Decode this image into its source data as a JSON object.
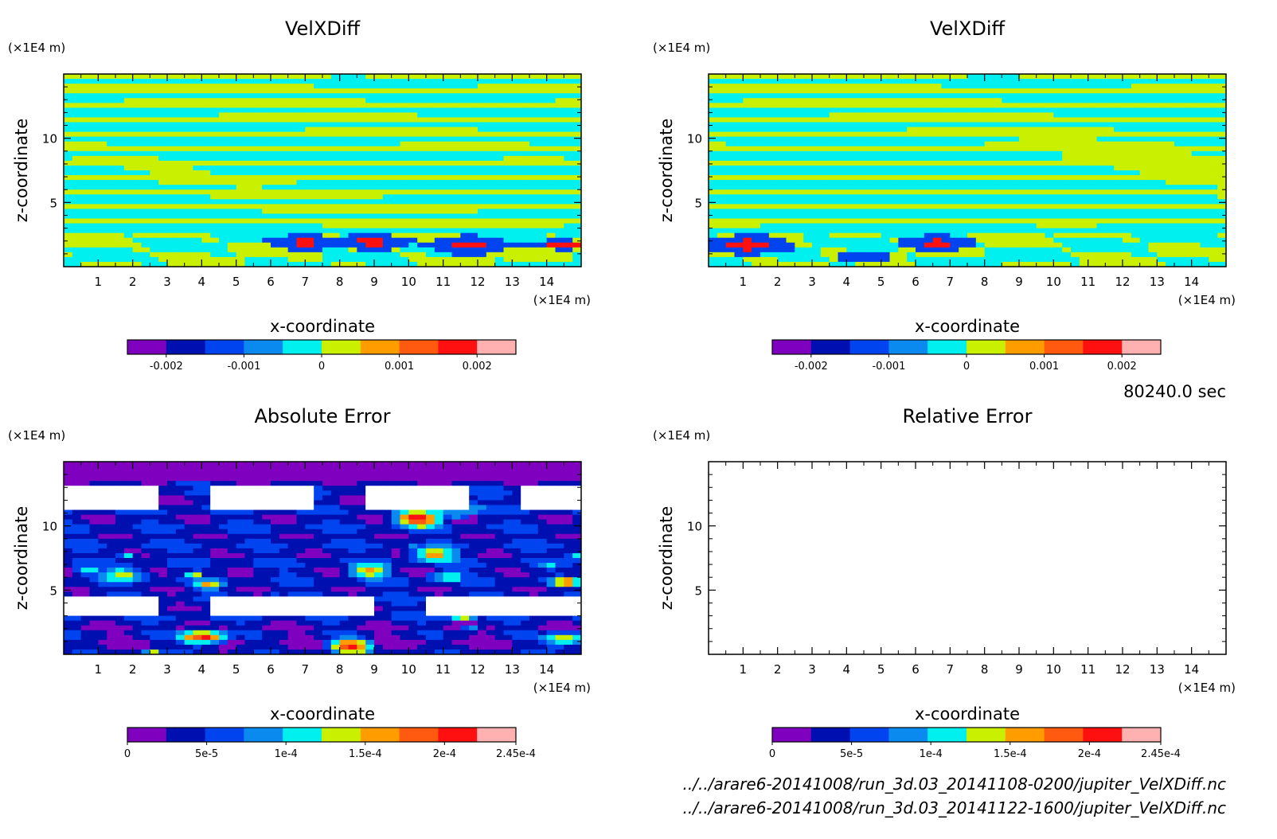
{
  "time_label": "80240.0 sec",
  "file_paths": [
    "../../arare6-20141008/run_3d.03_20141108-0200/jupiter_VelXDiff.nc",
    "../../arare6-20141008/run_3d.03_20141122-1600/jupiter_VelXDiff.nc"
  ],
  "colors": {
    "palette": [
      "#7f00bf",
      "#0010b0",
      "#0044f0",
      "#0a8aee",
      "#00f0f0",
      "#c8f000",
      "#ff9d00",
      "#ff5a10",
      "#ff1010",
      "#ffb0b0"
    ]
  },
  "chart_data": [
    {
      "type": "heatmap",
      "title": "VelXDiff",
      "xlabel": "x-coordinate",
      "ylabel": "z-coordinate",
      "x_unit": "(×1E4 m)",
      "y_unit": "(×1E4 m)",
      "xlim": [
        0,
        15
      ],
      "ylim": [
        0,
        15
      ],
      "x_ticks": [
        "1",
        "2",
        "3",
        "4",
        "5",
        "6",
        "7",
        "8",
        "9",
        "10",
        "11",
        "12",
        "13",
        "14"
      ],
      "y_ticks": [
        "5",
        "10"
      ],
      "field": "banded",
      "colorbar": {
        "min": -0.0025,
        "max": 0.0025,
        "levels": 10,
        "tick_labels": [
          "-0.002",
          "-0.001",
          "0",
          "0.001",
          "0.002"
        ]
      }
    },
    {
      "type": "heatmap",
      "title": "VelXDiff",
      "xlabel": "x-coordinate",
      "ylabel": "z-coordinate",
      "x_unit": "(×1E4 m)",
      "y_unit": "(×1E4 m)",
      "xlim": [
        0,
        15
      ],
      "ylim": [
        0,
        15
      ],
      "x_ticks": [
        "1",
        "2",
        "3",
        "4",
        "5",
        "6",
        "7",
        "8",
        "9",
        "10",
        "11",
        "12",
        "13",
        "14"
      ],
      "y_ticks": [
        "5",
        "10"
      ],
      "field": "banded",
      "colorbar": {
        "min": -0.0025,
        "max": 0.0025,
        "levels": 10,
        "tick_labels": [
          "-0.002",
          "-0.001",
          "0",
          "0.001",
          "0.002"
        ]
      }
    },
    {
      "type": "heatmap",
      "title": "Absolute Error",
      "xlabel": "x-coordinate",
      "ylabel": "z-coordinate",
      "x_unit": "(×1E4 m)",
      "y_unit": "(×1E4 m)",
      "xlim": [
        0,
        15
      ],
      "ylim": [
        0,
        15
      ],
      "x_ticks": [
        "1",
        "2",
        "3",
        "4",
        "5",
        "6",
        "7",
        "8",
        "9",
        "10",
        "11",
        "12",
        "13",
        "14"
      ],
      "y_ticks": [
        "5",
        "10"
      ],
      "field": "error",
      "colorbar": {
        "min": 0,
        "max": 0.000245,
        "levels": 10,
        "tick_labels": [
          "0",
          "5e-5",
          "1e-4",
          "1.5e-4",
          "2e-4",
          "2.45e-4"
        ]
      }
    },
    {
      "type": "heatmap",
      "title": "Relative Error",
      "xlabel": "x-coordinate",
      "ylabel": "z-coordinate",
      "x_unit": "(×1E4 m)",
      "y_unit": "(×1E4 m)",
      "xlim": [
        0,
        15
      ],
      "ylim": [
        0,
        15
      ],
      "x_ticks": [
        "1",
        "2",
        "3",
        "4",
        "5",
        "6",
        "7",
        "8",
        "9",
        "10",
        "11",
        "12",
        "13",
        "14"
      ],
      "y_ticks": [
        "5",
        "10"
      ],
      "field": "empty",
      "colorbar": {
        "min": 0,
        "max": 0.000245,
        "levels": 10,
        "tick_labels": [
          "0",
          "5e-5",
          "1e-4",
          "1.5e-4",
          "2e-4",
          "2.45e-4"
        ]
      }
    }
  ]
}
